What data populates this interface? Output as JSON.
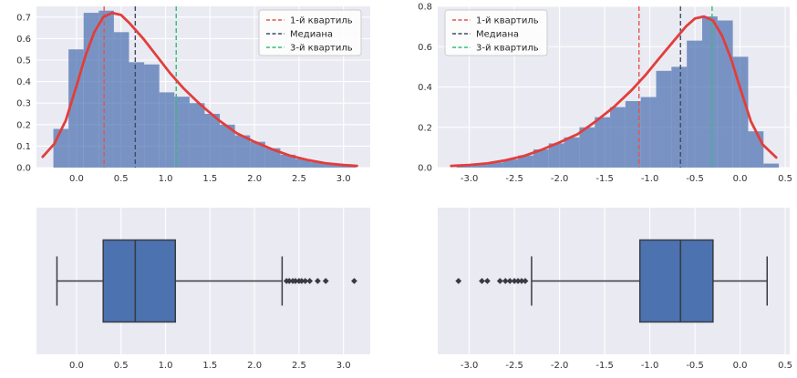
{
  "figure": {
    "background": "#ffffff",
    "axes_background": "#eaeaf2",
    "grid_color": "#ffffff",
    "text_color": "#333333"
  },
  "legend": {
    "items": [
      {
        "label": "1-й квартиль",
        "color": "#e8534d"
      },
      {
        "label": "Медиана",
        "color": "#3d4d63"
      },
      {
        "label": "3-й квартиль",
        "color": "#2fbe74"
      }
    ]
  },
  "chart_data": [
    {
      "id": "hist-left",
      "type": "bar",
      "subtype": "histogram+kde",
      "title": "",
      "xlabel": "",
      "ylabel": "",
      "xlim": [
        -0.45,
        3.3
      ],
      "ylim": [
        0,
        0.75
      ],
      "xticks": [
        0.0,
        0.5,
        1.0,
        1.5,
        2.0,
        2.5,
        3.0
      ],
      "yticks": [
        0.0,
        0.1,
        0.2,
        0.3,
        0.4,
        0.5,
        0.6,
        0.7
      ],
      "grid": true,
      "bar_color": "#4c72b0",
      "kde_color": "#e13e3c",
      "bin_start": -0.26,
      "bin_width": 0.17,
      "bin_heights": [
        0.18,
        0.55,
        0.72,
        0.73,
        0.63,
        0.49,
        0.48,
        0.35,
        0.33,
        0.3,
        0.25,
        0.2,
        0.15,
        0.12,
        0.09,
        0.06,
        0.04,
        0.025,
        0.015,
        0.01
      ],
      "kde": {
        "x": [
          -0.38,
          -0.25,
          -0.12,
          0.0,
          0.1,
          0.2,
          0.3,
          0.4,
          0.5,
          0.6,
          0.75,
          0.9,
          1.05,
          1.2,
          1.4,
          1.6,
          1.8,
          2.0,
          2.2,
          2.4,
          2.6,
          2.8,
          3.0,
          3.15
        ],
        "y": [
          0.05,
          0.11,
          0.22,
          0.38,
          0.52,
          0.63,
          0.7,
          0.72,
          0.71,
          0.67,
          0.6,
          0.52,
          0.44,
          0.37,
          0.29,
          0.22,
          0.16,
          0.12,
          0.085,
          0.055,
          0.035,
          0.02,
          0.012,
          0.008
        ]
      },
      "vlines": [
        {
          "label": "1-й квартиль",
          "x": 0.31,
          "color": "#e8534d"
        },
        {
          "label": "Медиана",
          "x": 0.66,
          "color": "#3d4d63"
        },
        {
          "label": "3-й квартиль",
          "x": 1.12,
          "color": "#2fbe74"
        }
      ],
      "legend_position": "top-right"
    },
    {
      "id": "hist-right",
      "type": "bar",
      "subtype": "histogram+kde",
      "title": "",
      "xlabel": "",
      "ylabel": "",
      "xlim": [
        -3.35,
        0.55
      ],
      "ylim": [
        0,
        0.8
      ],
      "xticks": [
        -3.0,
        -2.5,
        -2.0,
        -1.5,
        -1.0,
        -0.5,
        0.0,
        0.5
      ],
      "yticks": [
        0.0,
        0.2,
        0.4,
        0.6,
        0.8
      ],
      "grid": true,
      "bar_color": "#4c72b0",
      "kde_color": "#e13e3c",
      "bin_start": -3.14,
      "bin_width": 0.17,
      "bin_heights": [
        0.01,
        0.015,
        0.025,
        0.04,
        0.06,
        0.09,
        0.12,
        0.15,
        0.2,
        0.25,
        0.3,
        0.33,
        0.35,
        0.48,
        0.5,
        0.63,
        0.75,
        0.73,
        0.55,
        0.18,
        0.02
      ],
      "kde": {
        "x": [
          -3.2,
          -3.0,
          -2.8,
          -2.6,
          -2.4,
          -2.2,
          -2.0,
          -1.8,
          -1.6,
          -1.4,
          -1.2,
          -1.05,
          -0.9,
          -0.75,
          -0.6,
          -0.5,
          -0.4,
          -0.3,
          -0.2,
          -0.1,
          0.0,
          0.12,
          0.25,
          0.4
        ],
        "y": [
          0.008,
          0.013,
          0.021,
          0.036,
          0.057,
          0.088,
          0.125,
          0.166,
          0.229,
          0.3,
          0.385,
          0.458,
          0.54,
          0.62,
          0.7,
          0.74,
          0.75,
          0.73,
          0.655,
          0.54,
          0.395,
          0.23,
          0.115,
          0.05
        ]
      },
      "vlines": [
        {
          "label": "1-й квартиль",
          "x": -1.12,
          "color": "#e8534d"
        },
        {
          "label": "Медиана",
          "x": -0.66,
          "color": "#3d4d63"
        },
        {
          "label": "3-й квартиль",
          "x": -0.31,
          "color": "#2fbe74"
        }
      ],
      "legend_position": "top-left"
    },
    {
      "id": "box-left",
      "type": "boxplot",
      "title": "",
      "xlabel": "",
      "ylabel": "",
      "xlim": [
        -0.45,
        3.3
      ],
      "xticks": [
        0.0,
        0.5,
        1.0,
        1.5,
        2.0,
        2.5,
        3.0
      ],
      "grid": true,
      "box_color": "#4c72b0",
      "line_color": "#383c42",
      "whisker_min": -0.22,
      "q1": 0.3,
      "median": 0.66,
      "q3": 1.11,
      "whisker_max": 2.31,
      "outliers": [
        2.36,
        2.39,
        2.43,
        2.46,
        2.5,
        2.53,
        2.57,
        2.62,
        2.71,
        2.8,
        3.12
      ]
    },
    {
      "id": "box-right",
      "type": "boxplot",
      "title": "",
      "xlabel": "",
      "ylabel": "",
      "xlim": [
        -3.35,
        0.55
      ],
      "xticks": [
        -3.0,
        -2.5,
        -2.0,
        -1.5,
        -1.0,
        -0.5,
        0.0,
        0.5
      ],
      "grid": true,
      "box_color": "#4c72b0",
      "line_color": "#383c42",
      "whisker_min": -2.31,
      "q1": -1.11,
      "median": -0.66,
      "q3": -0.3,
      "whisker_max": 0.3,
      "outliers": [
        -3.12,
        -2.86,
        -2.8,
        -2.66,
        -2.6,
        -2.55,
        -2.5,
        -2.46,
        -2.42,
        -2.38
      ]
    }
  ]
}
